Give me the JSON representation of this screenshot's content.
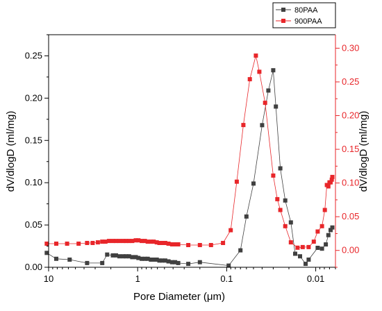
{
  "chart_data": {
    "type": "scatter",
    "title": "",
    "xlabel": "Pore Diameter (μm)",
    "ylabel_left": "dV/dlogD (ml/mg)",
    "ylabel_right": "dV/dlogD (ml/mg)",
    "x_scale": "log",
    "x_reversed": true,
    "xlim": [
      10,
      0.006
    ],
    "x_ticks": [
      10,
      1,
      0.1,
      0.01
    ],
    "x_tick_labels": [
      "10",
      "1",
      "0.1",
      "0.01"
    ],
    "ylim_left": [
      0,
      0.275
    ],
    "y_ticks_left": [
      0.0,
      0.05,
      0.1,
      0.15,
      0.2,
      0.25
    ],
    "y_tick_labels_left": [
      "0.00",
      "0.05",
      "0.10",
      "0.15",
      "0.20",
      "0.25"
    ],
    "ylim_right": [
      -0.025,
      0.32
    ],
    "y_ticks_right": [
      0.0,
      0.05,
      0.1,
      0.15,
      0.2,
      0.25,
      0.3
    ],
    "y_tick_labels_right": [
      "0.00",
      "0.05",
      "0.10",
      "0.15",
      "0.20",
      "0.25",
      "0.30"
    ],
    "grid": false,
    "legend_position": "top-right",
    "colors": {
      "series_80": "#404040",
      "series_900": "#e8262a"
    },
    "series": [
      {
        "name": "80PAA",
        "axis": "left",
        "marker": "square",
        "x": [
          10.5,
          8.2,
          5.8,
          3.7,
          2.5,
          2.2,
          1.9,
          1.75,
          1.6,
          1.45,
          1.35,
          1.25,
          1.15,
          1.05,
          0.98,
          0.9,
          0.83,
          0.77,
          0.71,
          0.66,
          0.61,
          0.57,
          0.53,
          0.49,
          0.45,
          0.41,
          0.38,
          0.35,
          0.27,
          0.2,
          0.095,
          0.07,
          0.06,
          0.05,
          0.04,
          0.034,
          0.03,
          0.028,
          0.025,
          0.022,
          0.019,
          0.017,
          0.015,
          0.013,
          0.012,
          0.0095,
          0.0085,
          0.0077,
          0.0072,
          0.0068,
          0.0065
        ],
        "y": [
          0.017,
          0.01,
          0.009,
          0.005,
          0.005,
          0.015,
          0.014,
          0.014,
          0.013,
          0.013,
          0.013,
          0.013,
          0.012,
          0.012,
          0.011,
          0.01,
          0.01,
          0.01,
          0.009,
          0.009,
          0.009,
          0.008,
          0.008,
          0.008,
          0.007,
          0.006,
          0.006,
          0.005,
          0.004,
          0.006,
          0.002,
          0.02,
          0.06,
          0.099,
          0.168,
          0.209,
          0.233,
          0.19,
          0.117,
          0.079,
          0.053,
          0.016,
          0.013,
          0.004,
          0.009,
          0.023,
          0.022,
          0.027,
          0.038,
          0.044,
          0.047
        ]
      },
      {
        "name": "900PAA",
        "axis": "right",
        "marker": "square",
        "x": [
          10.5,
          8.2,
          6.2,
          4.6,
          3.7,
          3.2,
          2.8,
          2.5,
          2.3,
          2.1,
          1.9,
          1.75,
          1.6,
          1.45,
          1.35,
          1.25,
          1.15,
          1.05,
          0.98,
          0.9,
          0.83,
          0.77,
          0.71,
          0.66,
          0.61,
          0.57,
          0.53,
          0.49,
          0.45,
          0.41,
          0.38,
          0.35,
          0.27,
          0.2,
          0.15,
          0.11,
          0.09,
          0.077,
          0.065,
          0.055,
          0.047,
          0.043,
          0.037,
          0.03,
          0.027,
          0.025,
          0.022,
          0.019,
          0.016,
          0.014,
          0.012,
          0.0105,
          0.0095,
          0.0085,
          0.0079,
          0.0075,
          0.0072,
          0.007,
          0.0068,
          0.0066,
          0.0065
        ],
        "y": [
          0.01,
          0.01,
          0.01,
          0.01,
          0.011,
          0.011,
          0.012,
          0.013,
          0.013,
          0.014,
          0.014,
          0.014,
          0.014,
          0.014,
          0.014,
          0.014,
          0.014,
          0.015,
          0.015,
          0.014,
          0.014,
          0.013,
          0.013,
          0.013,
          0.012,
          0.011,
          0.011,
          0.011,
          0.01,
          0.009,
          0.009,
          0.009,
          0.008,
          0.008,
          0.008,
          0.011,
          0.03,
          0.102,
          0.186,
          0.254,
          0.289,
          0.265,
          0.219,
          0.111,
          0.076,
          0.06,
          0.036,
          0.012,
          0.004,
          0.005,
          0.005,
          0.013,
          0.028,
          0.036,
          0.06,
          0.097,
          0.095,
          0.101,
          0.101,
          0.105,
          0.109
        ]
      }
    ]
  }
}
